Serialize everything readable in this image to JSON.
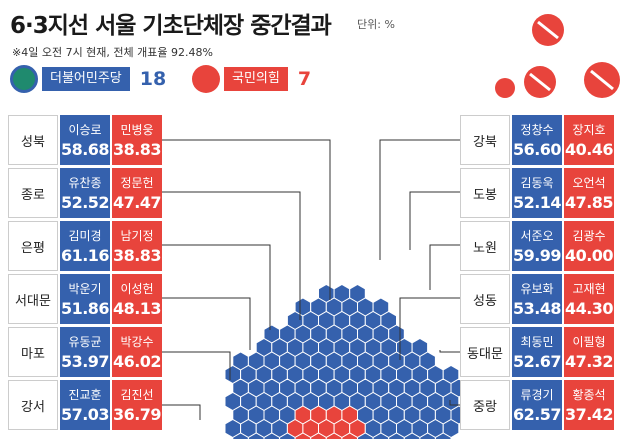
{
  "header": {
    "title": "6·3지선 서울 기초단체장 중간결과",
    "unit": "단위: %",
    "note": "※4일 오전 7시 현재, 전체 개표율 92.48%"
  },
  "legend": [
    {
      "party": "더불어민주당",
      "seats": 18
    },
    {
      "party": "국민의힘",
      "seats": 7
    }
  ],
  "left": [
    {
      "district": "성북",
      "dem": "이승로",
      "dem_score": "58.68",
      "ppp": "민병웅",
      "ppp_score": "38.83"
    },
    {
      "district": "종로",
      "dem": "유찬종",
      "dem_score": "52.52",
      "ppp": "정문헌",
      "ppp_score": "47.47"
    },
    {
      "district": "은평",
      "dem": "김미경",
      "dem_score": "61.16",
      "ppp": "남기정",
      "ppp_score": "38.83"
    },
    {
      "district": "서대문",
      "dem": "박운기",
      "dem_score": "51.86",
      "ppp": "이성헌",
      "ppp_score": "48.13"
    },
    {
      "district": "마포",
      "dem": "유동균",
      "dem_score": "53.97",
      "ppp": "박강수",
      "ppp_score": "46.02"
    },
    {
      "district": "강서",
      "dem": "진교훈",
      "dem_score": "57.03",
      "ppp": "김진선",
      "ppp_score": "36.79"
    }
  ],
  "right": [
    {
      "district": "강북",
      "dem": "정창수",
      "dem_score": "56.60",
      "ppp": "장지호",
      "ppp_score": "40.46"
    },
    {
      "district": "도봉",
      "dem": "김동욱",
      "dem_score": "52.14",
      "ppp": "오언석",
      "ppp_score": "47.85"
    },
    {
      "district": "노원",
      "dem": "서준오",
      "dem_score": "59.99",
      "ppp": "김광수",
      "ppp_score": "40.00"
    },
    {
      "district": "성동",
      "dem": "유보화",
      "dem_score": "53.48",
      "ppp": "고재현",
      "ppp_score": "44.30"
    },
    {
      "district": "동대문",
      "dem": "최동민",
      "dem_score": "52.67",
      "ppp": "이필형",
      "ppp_score": "47.32"
    },
    {
      "district": "중랑",
      "dem": "류경기",
      "dem_score": "62.57",
      "ppp": "황종석",
      "ppp_score": "37.42"
    }
  ]
}
